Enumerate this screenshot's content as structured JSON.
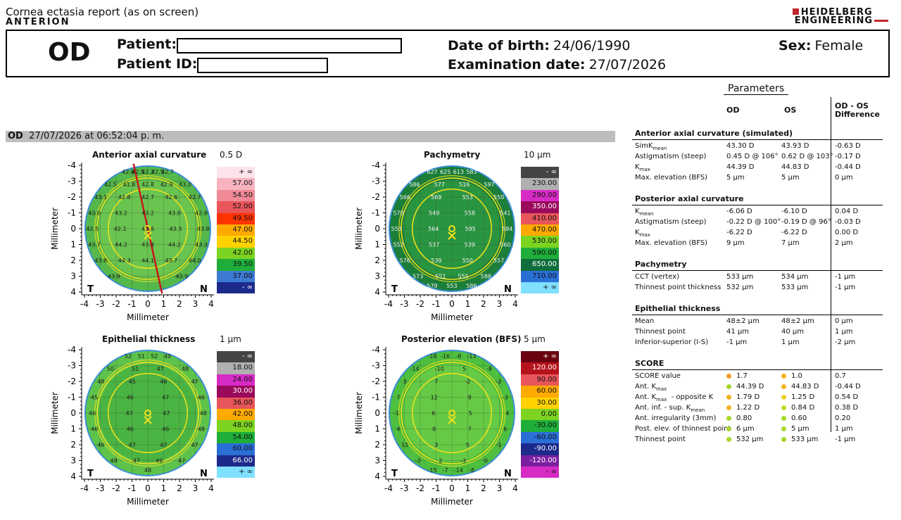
{
  "header": {
    "report_title": "Cornea ectasia report (as on screen)",
    "device": "ANTERION",
    "brand_line1": "HEIDELBERG",
    "brand_line2": "ENGINEERING"
  },
  "patient": {
    "eye": "OD",
    "patient_label": "Patient:",
    "patient_id_label": "Patient ID:",
    "dob_label": "Date of birth:",
    "dob_value": "24/06/1990",
    "exam_label": "Examination date:",
    "exam_value": "27/07/2026",
    "sex_label": "Sex:",
    "sex_value": "Female"
  },
  "scan": {
    "eye": "OD",
    "datetime": "27/07/2026 at 06:52:04 p. m."
  },
  "maps": {
    "axis_label": "Millimeter",
    "ticks": [
      "-4",
      "-3",
      "-2",
      "-1",
      "0",
      "1",
      "2",
      "3",
      "4"
    ],
    "temporal": "T",
    "nasal": "N",
    "anterior": {
      "title": "Anterior axial curvature",
      "step": "0.5 D",
      "scale": [
        "+ ∞",
        "57.00",
        "54.50",
        "52.00",
        "49.50",
        "47.00",
        "44.50",
        "42.00",
        "39.50",
        "37.00",
        "- ∞"
      ],
      "scale_colors": [
        "#fde4ea",
        "#f7b4c0",
        "#f08a96",
        "#e8555a",
        "#ff3300",
        "#ffaa00",
        "#ffd200",
        "#7cd321",
        "#1fae3a",
        "#3c7ad3",
        "#1c2a8c"
      ],
      "values": [
        "42.6",
        "42.5",
        "42.2",
        "42.5",
        "42.7",
        "42.5",
        "41.8",
        "42.8",
        "42.9",
        "43.0",
        "43.1",
        "42.8",
        "42.7",
        "42.6",
        "42.7",
        "43.0",
        "43.2",
        "43.2",
        "43.0",
        "42.9",
        "42.5",
        "42.1",
        "43.6",
        "43.3",
        "43.8",
        "43.7",
        "44.2",
        "43.4",
        "44.2",
        "43.3",
        "43.8",
        "44.3",
        "44.1",
        "43.7",
        "44.0",
        "43.9",
        "43.9"
      ]
    },
    "pachymetry": {
      "title": "Pachymetry",
      "step": "10 µm",
      "scale": [
        "- ∞",
        "230.00",
        "290.00",
        "350.00",
        "410.00",
        "470.00",
        "530.00",
        "590.00",
        "650.00",
        "710.00",
        "+ ∞"
      ],
      "scale_colors": [
        "#444444",
        "#b0b0b0",
        "#d72bc6",
        "#9a0a5c",
        "#e8555a",
        "#ffaa00",
        "#7cd321",
        "#1fae3a",
        "#0f6e3c",
        "#2a6fd6",
        "#7fe0ff"
      ],
      "values": [
        "627",
        "625",
        "613",
        "583",
        "586",
        "577",
        "516",
        "597",
        "566",
        "569",
        "553",
        "550",
        "570",
        "549",
        "558",
        "541",
        "553",
        "564",
        "595",
        "584",
        "552",
        "537",
        "539",
        "560",
        "576",
        "539",
        "550",
        "557",
        "573",
        "551",
        "555",
        "588",
        "579",
        "553",
        "586"
      ]
    },
    "epithelial": {
      "title": "Epithelial thickness",
      "step": "1 µm",
      "scale": [
        "- ∞",
        "18.00",
        "24.00",
        "30.00",
        "36.00",
        "42.00",
        "48.00",
        "54.00",
        "60.00",
        "66.00",
        "+ ∞"
      ],
      "scale_colors": [
        "#444444",
        "#b0b0b0",
        "#d72bc6",
        "#9a0a5c",
        "#e8555a",
        "#ffaa00",
        "#7cd321",
        "#1fae3a",
        "#2a6fd6",
        "#1c2a8c",
        "#7fe0ff"
      ],
      "values": [
        "52",
        "51",
        "52",
        "49",
        "50",
        "51",
        "47",
        "48",
        "48",
        "45",
        "46",
        "47",
        "45",
        "46",
        "47",
        "46",
        "46",
        "47",
        "47",
        "48",
        "46",
        "46",
        "46",
        "48",
        "46",
        "47",
        "47",
        "47",
        "48",
        "47",
        "49",
        "47",
        "48"
      ]
    },
    "posterior": {
      "title": "Posterior elevation (BFS)",
      "step": "5 µm",
      "scale": [
        "+ ∞",
        "120.00",
        "90.00",
        "60.00",
        "30.00",
        "0.00",
        "-30.00",
        "-60.00",
        "-90.00",
        "-120.00",
        "- ∞"
      ],
      "scale_colors": [
        "#6a0010",
        "#b5121b",
        "#e8555a",
        "#ffaa00",
        "#ffd200",
        "#7cd321",
        "#1fae3a",
        "#2a6fd6",
        "#1c2a8c",
        "#7a1fa0",
        "#d72bc6"
      ],
      "values": [
        "-18",
        "-16",
        "-8",
        "-13",
        "-14",
        "-10",
        "5",
        "-8",
        "3",
        "7",
        "-2",
        "-2",
        "7",
        "12",
        "8",
        "-3",
        "-1",
        "6",
        "5",
        "4",
        "4",
        "8",
        "7",
        "6",
        "11",
        "3",
        "5",
        "-1",
        "-2",
        "2",
        "-3",
        "0",
        "-15",
        "-7",
        "-14",
        "-8"
      ]
    }
  },
  "params": {
    "title": "Parameters",
    "col_od": "OD",
    "col_os": "OS",
    "col_diff1": "OD - OS",
    "col_diff2": "Difference",
    "sections": [
      {
        "title": "Anterior axial curvature (simulated)",
        "rows": [
          {
            "label": "SimK",
            "sub": "mean",
            "od": "43.30 D",
            "os": "43.93 D",
            "diff": "-0.63 D"
          },
          {
            "label": "Astigmatism (steep)",
            "sub": "",
            "od": "0.45 D @ 106°",
            "os": "0.62 D @ 103°",
            "diff": "-0.17 D"
          },
          {
            "label": "K",
            "sub": "max",
            "od": "44.39 D",
            "os": "44.83 D",
            "diff": "-0.44 D"
          },
          {
            "label": "Max. elevation (BFS)",
            "sub": "",
            "od": "5 µm",
            "os": "5 µm",
            "diff": "0 µm"
          }
        ]
      },
      {
        "title": "Posterior axial curvature",
        "rows": [
          {
            "label": "K",
            "sub": "mean",
            "od": "-6.06 D",
            "os": "-6.10 D",
            "diff": "0.04 D"
          },
          {
            "label": "Astigmatism (steep)",
            "sub": "",
            "od": "-0.22 D @ 100°",
            "os": "-0.19 D @ 96°",
            "diff": "-0.03 D"
          },
          {
            "label": "K",
            "sub": "max",
            "od": "-6.22 D",
            "os": "-6.22 D",
            "diff": "0.00 D"
          },
          {
            "label": "Max. elevation (BFS)",
            "sub": "",
            "od": "9 µm",
            "os": "7 µm",
            "diff": "2 µm"
          }
        ]
      },
      {
        "title": "Pachymetry",
        "rows": [
          {
            "label": "CCT (vertex)",
            "sub": "",
            "od": "533 µm",
            "os": "534 µm",
            "diff": "-1 µm"
          },
          {
            "label": "Thinnest point thickness",
            "sub": "",
            "od": "532 µm",
            "os": "533 µm",
            "diff": "-1 µm"
          }
        ]
      },
      {
        "title": "Epithelial thickness",
        "rows": [
          {
            "label": "Mean",
            "sub": "",
            "od": "48±2 µm",
            "os": "48±2 µm",
            "diff": "0 µm"
          },
          {
            "label": "Thinnest point",
            "sub": "",
            "od": "41 µm",
            "os": "40 µm",
            "diff": "1 µm"
          },
          {
            "label": "Inferior-superior (I-S)",
            "sub": "",
            "od": "-1 µm",
            "os": "1 µm",
            "diff": "-2 µm"
          }
        ]
      },
      {
        "title": "SCORE",
        "rows": [
          {
            "label": "SCORE value",
            "sub": "",
            "od": "1.7",
            "os": "1.0",
            "diff": "0.7",
            "od_dot": "#f39c1f",
            "os_dot": "#f3b21f"
          },
          {
            "label": "Ant. K",
            "sub": "max",
            "od": "44.39 D",
            "os": "44.83 D",
            "diff": "-0.44 D",
            "od_dot": "#a6d829",
            "os_dot": "#f3b21f"
          },
          {
            "label": "Ant. K",
            "sub": "max",
            "suffix": "  - opposite K",
            "od": "1.79 D",
            "os": "1.25 D",
            "diff": "0.54 D",
            "od_dot": "#f3b21f",
            "os_dot": "#e8d22b"
          },
          {
            "label": "Ant. inf. - sup. K",
            "sub": "mean",
            "od": "1.22 D",
            "os": "0.84 D",
            "diff": "0.38 D",
            "od_dot": "#f3b21f",
            "os_dot": "#c5d829"
          },
          {
            "label": "Ant. irregularity (3mm)",
            "sub": "",
            "od": "0.80",
            "os": "0.60",
            "diff": "0.20",
            "od_dot": "#a6d829",
            "os_dot": "#a6d829"
          },
          {
            "label": "Post. elev. of thinnest point",
            "sub": "",
            "od": "6 µm",
            "os": "5 µm",
            "diff": "1 µm",
            "od_dot": "#a6d829",
            "os_dot": "#a6d829"
          },
          {
            "label": "Thinnest point",
            "sub": "",
            "od": "532 µm",
            "os": "533 µm",
            "diff": "-1 µm",
            "od_dot": "#a6d829",
            "os_dot": "#a6d829"
          }
        ]
      }
    ]
  }
}
